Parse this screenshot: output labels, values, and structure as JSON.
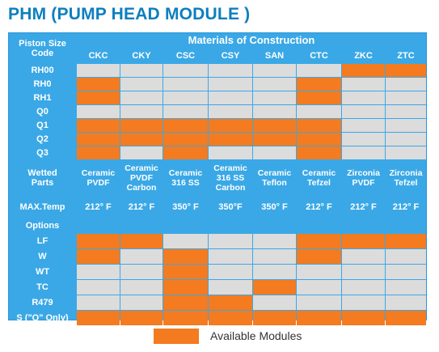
{
  "page": {
    "title": "PHM (PUMP HEAD MODULE )"
  },
  "table": {
    "corner_label": "Piston Size\nCode",
    "group_header": "Materials of Construction",
    "columns": [
      "CKC",
      "CKY",
      "CSC",
      "CSY",
      "SAN",
      "CTC",
      "ZKC",
      "ZTC"
    ],
    "piston_rows": [
      {
        "label": "RH00",
        "cells": [
          0,
          0,
          0,
          0,
          0,
          0,
          1,
          1
        ]
      },
      {
        "label": "RH0",
        "cells": [
          1,
          0,
          0,
          0,
          0,
          1,
          0,
          0
        ]
      },
      {
        "label": "RH1",
        "cells": [
          1,
          0,
          0,
          0,
          0,
          1,
          0,
          0
        ]
      },
      {
        "label": "Q0",
        "cells": [
          0,
          0,
          0,
          0,
          0,
          0,
          0,
          0
        ]
      },
      {
        "label": "Q1",
        "cells": [
          1,
          1,
          1,
          1,
          1,
          1,
          0,
          0
        ]
      },
      {
        "label": "Q2",
        "cells": [
          1,
          1,
          1,
          1,
          1,
          1,
          0,
          0
        ]
      },
      {
        "label": "Q3",
        "cells": [
          1,
          0,
          1,
          0,
          0,
          1,
          0,
          0
        ]
      }
    ],
    "wetted_parts": {
      "label": "Wetted\nParts",
      "values": [
        "Ceramic\nPVDF",
        "Ceramic\nPVDF\nCarbon",
        "Ceramic\n316 SS",
        "Ceramic\n316 SS\nCarbon",
        "Ceramic\nTeflon",
        "Ceramic\nTefzel",
        "Zirconia\nPVDF",
        "Zirconia\nTefzel"
      ]
    },
    "max_temp": {
      "label": "MAX.Temp",
      "values": [
        "212° F",
        "212° F",
        "350° F",
        "350°F",
        "350° F",
        "212° F",
        "212° F",
        "212° F"
      ]
    },
    "options_label": "Options",
    "option_rows": [
      {
        "label": "LF",
        "cells": [
          1,
          1,
          0,
          0,
          0,
          1,
          1,
          1
        ]
      },
      {
        "label": "W",
        "cells": [
          1,
          0,
          1,
          0,
          0,
          1,
          0,
          0
        ]
      },
      {
        "label": "WT",
        "cells": [
          0,
          0,
          1,
          0,
          0,
          0,
          0,
          0
        ]
      },
      {
        "label": "TC",
        "cells": [
          0,
          0,
          1,
          0,
          1,
          0,
          0,
          0
        ]
      },
      {
        "label": "R479",
        "cells": [
          0,
          0,
          1,
          1,
          0,
          0,
          0,
          0
        ]
      },
      {
        "label": "S (\"Q\" Only)",
        "cells": [
          1,
          1,
          1,
          1,
          1,
          1,
          1,
          1
        ]
      }
    ]
  },
  "legend": {
    "label": "Available Modules"
  },
  "colors": {
    "available": "#f47b20",
    "unavailable": "#dcdcdc",
    "header_blue": "#3aa8e6",
    "title_blue": "#0d7fbf"
  }
}
